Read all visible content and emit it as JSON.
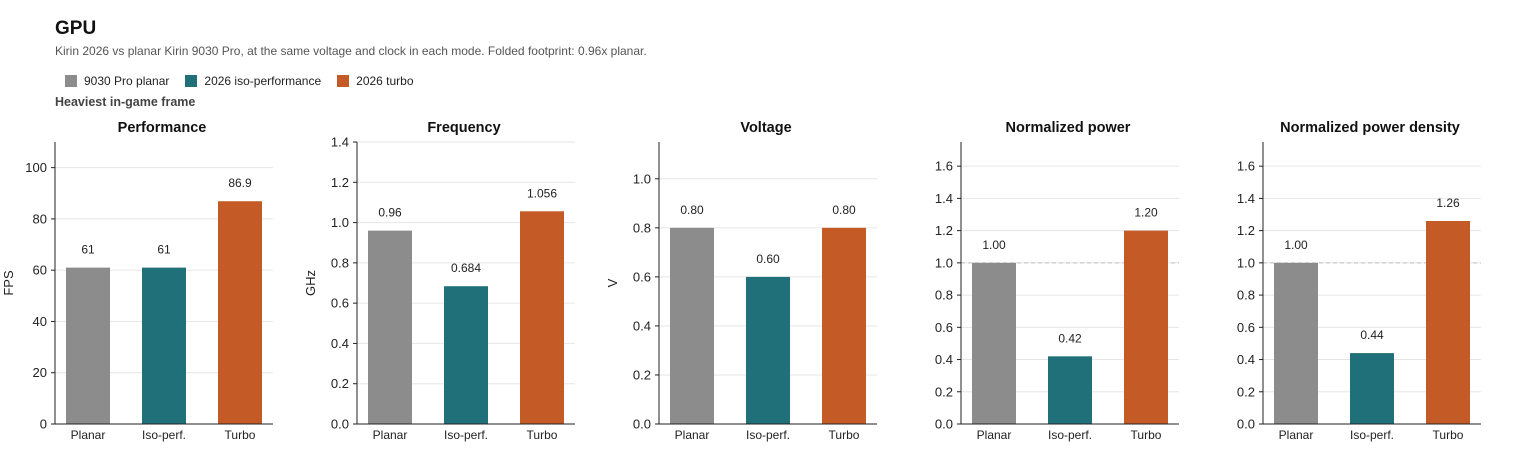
{
  "header": {
    "title": "GPU",
    "subtitle": "Kirin 2026 vs planar Kirin 9030 Pro, at the same voltage and clock in each mode. Folded footprint: 0.96x planar.",
    "section": "Heaviest in-game frame"
  },
  "legend": [
    {
      "label": "9030 Pro planar",
      "color": "#8c8c8c"
    },
    {
      "label": "2026 iso-performance",
      "color": "#20707a"
    },
    {
      "label": "2026 turbo",
      "color": "#c45a26"
    }
  ],
  "chart_data": [
    {
      "type": "bar",
      "title": "Performance",
      "ylabel": "FPS",
      "categories": [
        "Planar",
        "Iso-perf.",
        "Turbo"
      ],
      "values": [
        61,
        61,
        86.9
      ],
      "labels": [
        "61",
        "61",
        "86.9"
      ],
      "ylim": [
        0,
        110
      ],
      "yticks": [
        0,
        20,
        40,
        60,
        80,
        100
      ],
      "ytick_labels": [
        "0",
        "20",
        "40",
        "60",
        "80",
        "100"
      ],
      "colors": [
        "#8c8c8c",
        "#20707a",
        "#c45a26"
      ],
      "grid": true,
      "reference_line": null
    },
    {
      "type": "bar",
      "title": "Frequency",
      "ylabel": "GHz",
      "categories": [
        "Planar",
        "Iso-perf.",
        "Turbo"
      ],
      "values": [
        0.96,
        0.684,
        1.056
      ],
      "labels": [
        "0.96",
        "0.684",
        "1.056"
      ],
      "ylim": [
        0,
        1.4
      ],
      "yticks": [
        0,
        0.2,
        0.4,
        0.6,
        0.8,
        1.0,
        1.2,
        1.4
      ],
      "ytick_labels": [
        "0.0",
        "0.2",
        "0.4",
        "0.6",
        "0.8",
        "1.0",
        "1.2",
        "1.4"
      ],
      "colors": [
        "#8c8c8c",
        "#20707a",
        "#c45a26"
      ],
      "grid": true,
      "reference_line": null
    },
    {
      "type": "bar",
      "title": "Voltage",
      "ylabel": "V",
      "categories": [
        "Planar",
        "Iso-perf.",
        "Turbo"
      ],
      "values": [
        0.8,
        0.6,
        0.8
      ],
      "labels": [
        "0.80",
        "0.60",
        "0.80"
      ],
      "ylim": [
        0,
        1.15
      ],
      "yticks": [
        0,
        0.2,
        0.4,
        0.6,
        0.8,
        1.0
      ],
      "ytick_labels": [
        "0.0",
        "0.2",
        "0.4",
        "0.6",
        "0.8",
        "1.0"
      ],
      "colors": [
        "#8c8c8c",
        "#20707a",
        "#c45a26"
      ],
      "grid": true,
      "reference_line": null
    },
    {
      "type": "bar",
      "title": "Normalized power",
      "ylabel": "",
      "categories": [
        "Planar",
        "Iso-perf.",
        "Turbo"
      ],
      "values": [
        1.0,
        0.42,
        1.2
      ],
      "labels": [
        "1.00",
        "0.42",
        "1.20"
      ],
      "ylim": [
        0,
        1.75
      ],
      "yticks": [
        0,
        0.2,
        0.4,
        0.6,
        0.8,
        1.0,
        1.2,
        1.4,
        1.6
      ],
      "ytick_labels": [
        "0.0",
        "0.2",
        "0.4",
        "0.6",
        "0.8",
        "1.0",
        "1.2",
        "1.4",
        "1.6"
      ],
      "colors": [
        "#8c8c8c",
        "#20707a",
        "#c45a26"
      ],
      "grid": true,
      "reference_line": 1.0
    },
    {
      "type": "bar",
      "title": "Normalized power density",
      "ylabel": "",
      "categories": [
        "Planar",
        "Iso-perf.",
        "Turbo"
      ],
      "values": [
        1.0,
        0.44,
        1.26
      ],
      "labels": [
        "1.00",
        "0.44",
        "1.26"
      ],
      "ylim": [
        0,
        1.75
      ],
      "yticks": [
        0,
        0.2,
        0.4,
        0.6,
        0.8,
        1.0,
        1.2,
        1.4,
        1.6
      ],
      "ytick_labels": [
        "0.0",
        "0.2",
        "0.4",
        "0.6",
        "0.8",
        "1.0",
        "1.2",
        "1.4",
        "1.6"
      ],
      "colors": [
        "#8c8c8c",
        "#20707a",
        "#c45a26"
      ],
      "grid": true,
      "reference_line": 1.0
    }
  ]
}
